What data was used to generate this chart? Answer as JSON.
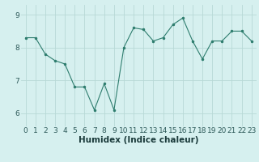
{
  "x": [
    0,
    1,
    2,
    3,
    4,
    5,
    6,
    7,
    8,
    9,
    10,
    11,
    12,
    13,
    14,
    15,
    16,
    17,
    18,
    19,
    20,
    21,
    22,
    23
  ],
  "y": [
    8.3,
    8.3,
    7.8,
    7.6,
    7.5,
    6.8,
    6.8,
    6.1,
    6.9,
    6.1,
    8.0,
    8.6,
    8.55,
    8.2,
    8.3,
    8.7,
    8.9,
    8.2,
    7.65,
    8.2,
    8.2,
    8.5,
    8.5,
    8.2
  ],
  "line_color": "#2e7d6e",
  "marker": ".",
  "marker_size": 3,
  "bg_color": "#d6f0ef",
  "grid_color": "#b8d9d6",
  "tick_label_color": "#2e5a5a",
  "xlabel": "Humidex (Indice chaleur)",
  "xlabel_color": "#1a3a3a",
  "xlabel_fontsize": 7.5,
  "tick_fontsize": 6.5,
  "ylim": [
    5.6,
    9.3
  ],
  "yticks": [
    6,
    7,
    8,
    9
  ],
  "xlim": [
    -0.5,
    23.5
  ],
  "xticks": [
    0,
    1,
    2,
    3,
    4,
    5,
    6,
    7,
    8,
    9,
    10,
    11,
    12,
    13,
    14,
    15,
    16,
    17,
    18,
    19,
    20,
    21,
    22,
    23
  ]
}
